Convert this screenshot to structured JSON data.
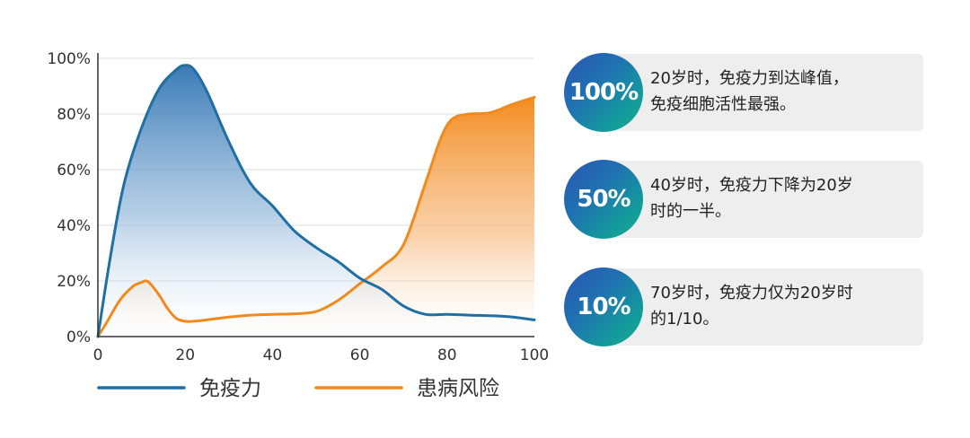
{
  "chart_data": {
    "type": "area",
    "x_ticks": [
      "0",
      "20",
      "40",
      "60",
      "80",
      "100"
    ],
    "y_ticks": [
      "0%",
      "20%",
      "40%",
      "60%",
      "80%",
      "100%"
    ],
    "xlim": [
      0,
      100
    ],
    "ylim": [
      0,
      100
    ],
    "grid": "horizontal",
    "legend_position": "bottom",
    "series": [
      {
        "name": "免疫力",
        "color": "#1f6fa3",
        "x": [
          0,
          3,
          6,
          10,
          14,
          18,
          20,
          22,
          25,
          30,
          35,
          40,
          45,
          50,
          55,
          60,
          65,
          70,
          75,
          80,
          85,
          90,
          95,
          100
        ],
        "y": [
          0,
          30,
          55,
          75,
          89,
          96,
          97.5,
          96,
          88,
          70,
          55,
          47,
          38,
          32,
          27,
          21,
          17,
          11,
          8,
          8,
          7.7,
          7.5,
          7,
          6
        ]
      },
      {
        "name": "患病风险",
        "color": "#f08a1c",
        "x": [
          0,
          2,
          5,
          8,
          10,
          11,
          12,
          14,
          16,
          18,
          20,
          22,
          25,
          30,
          35,
          40,
          45,
          50,
          55,
          60,
          65,
          70,
          75,
          78,
          80,
          82,
          85,
          90,
          95,
          100
        ],
        "y": [
          0,
          5,
          13,
          18,
          19.5,
          20,
          19,
          15,
          10,
          6.5,
          5.5,
          5.5,
          6,
          7,
          7.7,
          8,
          8.2,
          9,
          13,
          19,
          25,
          33,
          55,
          69,
          76,
          79,
          80,
          80.5,
          83.5,
          86
        ]
      }
    ]
  },
  "stats": [
    {
      "value": "100%",
      "lines": [
        "20岁时，免疫力到达峰值，",
        "免疫细胞活性最强。"
      ]
    },
    {
      "value": "50%",
      "lines": [
        "40岁时，免疫力下降为20岁",
        "时的一半。"
      ]
    },
    {
      "value": "10%",
      "lines": [
        "70岁时，免疫力仅为20岁时",
        "的1/10。"
      ]
    }
  ]
}
